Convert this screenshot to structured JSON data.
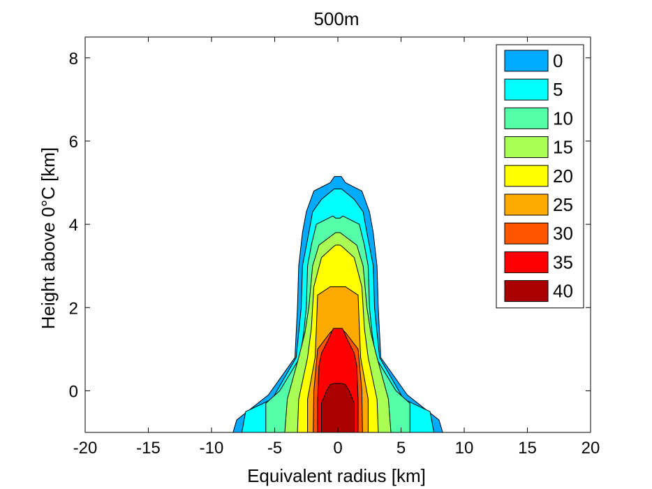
{
  "chart_data": {
    "type": "contourf",
    "title": "500m",
    "xlabel": "Equivalent radius [km]",
    "ylabel": "Height above 0°C [km]",
    "xlim": [
      -20,
      20
    ],
    "ylim": [
      -1,
      8.5
    ],
    "xticks": [
      -20,
      -15,
      -10,
      -5,
      0,
      5,
      10,
      15,
      20
    ],
    "yticks": [
      0,
      2,
      4,
      6,
      8
    ],
    "legend_position": "top-right",
    "grid": false,
    "levels": [
      {
        "label": "0",
        "color": "#00aaff"
      },
      {
        "label": "5",
        "color": "#00ffff"
      },
      {
        "label": "10",
        "color": "#55ffaa"
      },
      {
        "label": "15",
        "color": "#aaff55"
      },
      {
        "label": "20",
        "color": "#ffff00"
      },
      {
        "label": "25",
        "color": "#ffaa00"
      },
      {
        "label": "30",
        "color": "#ff5500"
      },
      {
        "label": "35",
        "color": "#ff0000"
      },
      {
        "label": "40",
        "color": "#aa0000"
      }
    ],
    "contours": [
      {
        "level": "0",
        "half_width": [
          [
            -1,
            8.3
          ],
          [
            -0.7,
            8.0
          ],
          [
            -0.1,
            5.5
          ],
          [
            0.8,
            3.4
          ],
          [
            1.4,
            3.3
          ],
          [
            2.0,
            3.2
          ],
          [
            3.0,
            3.1
          ],
          [
            3.8,
            2.8
          ],
          [
            4.3,
            2.5
          ],
          [
            4.8,
            1.9
          ],
          [
            5.0,
            0.6
          ]
        ],
        "top": 5.15
      },
      {
        "level": "5",
        "half_width": [
          [
            -1,
            7.6
          ],
          [
            -0.5,
            7.3
          ],
          [
            -0.2,
            5.2
          ],
          [
            0.8,
            3.3
          ],
          [
            1.4,
            3.1
          ],
          [
            2.0,
            2.9
          ],
          [
            3.0,
            2.8
          ],
          [
            3.8,
            2.3
          ],
          [
            4.3,
            2.0
          ],
          [
            4.6,
            1.3
          ],
          [
            4.85,
            0.3
          ]
        ],
        "top": 4.85
      },
      {
        "level": "10",
        "half_width": [
          [
            -1,
            5.7
          ],
          [
            -0.3,
            5.7
          ],
          [
            0.0,
            4.6
          ],
          [
            0.8,
            3.0
          ],
          [
            1.4,
            2.7
          ],
          [
            2.0,
            2.5
          ],
          [
            3.0,
            2.4
          ],
          [
            3.5,
            2.1
          ],
          [
            4.0,
            1.7
          ],
          [
            4.2,
            0.4
          ]
        ],
        "top": 4.15
      },
      {
        "level": "15",
        "half_width": [
          [
            -1,
            4.2
          ],
          [
            -0.2,
            4.0
          ],
          [
            0.8,
            3.1
          ],
          [
            1.4,
            2.6
          ],
          [
            2.0,
            2.3
          ],
          [
            3.0,
            2.0
          ],
          [
            3.5,
            1.5
          ],
          [
            3.75,
            0.4
          ]
        ],
        "top": 3.8
      },
      {
        "level": "20",
        "half_width": [
          [
            -1,
            3.2
          ],
          [
            -0.2,
            3.1
          ],
          [
            0.8,
            2.4
          ],
          [
            1.5,
            2.1
          ],
          [
            2.5,
            1.9
          ],
          [
            3.2,
            1.3
          ],
          [
            3.45,
            0.4
          ]
        ],
        "top": 3.5
      },
      {
        "level": "25",
        "half_width": [
          [
            -1,
            2.4
          ],
          [
            -0.2,
            2.4
          ],
          [
            0.8,
            1.8
          ],
          [
            1.5,
            1.7
          ],
          [
            2.3,
            1.6
          ],
          [
            2.5,
            0.6
          ]
        ],
        "top": 2.5
      },
      {
        "level": "30",
        "half_width": [
          [
            -1,
            1.95
          ],
          [
            0.0,
            1.9
          ],
          [
            1.0,
            1.6
          ],
          [
            1.4,
            0.6
          ]
        ],
        "top": 1.5
      },
      {
        "level": "35",
        "half_width": [
          [
            -1,
            1.6
          ],
          [
            -0.2,
            1.6
          ],
          [
            0.6,
            1.5
          ],
          [
            0.9,
            1.3
          ],
          [
            1.2,
            0.8
          ]
        ],
        "top": 1.5
      },
      {
        "level": "40",
        "half_width": [
          [
            -1,
            1.3
          ],
          [
            -0.3,
            1.3
          ],
          [
            0.0,
            0.9
          ],
          [
            0.15,
            0.6
          ]
        ],
        "top": 0.18
      }
    ]
  }
}
